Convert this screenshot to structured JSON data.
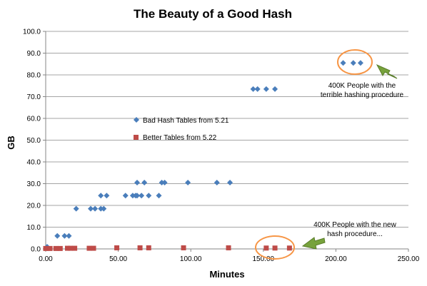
{
  "chart_data": {
    "type": "scatter",
    "title": "The Beauty of a Good Hash",
    "xlabel": "Minutes",
    "ylabel": "GB",
    "xlim": [
      0,
      250
    ],
    "ylim": [
      0,
      100
    ],
    "x_ticks": [
      "0.00",
      "50.00",
      "100.00",
      "150.00",
      "200.00",
      "250.00"
    ],
    "y_ticks": [
      "0.0",
      "10.0",
      "20.0",
      "30.0",
      "40.0",
      "50.0",
      "60.0",
      "70.0",
      "80.0",
      "90.0",
      "100.0"
    ],
    "grid": "horizontal",
    "legend_placement": "center-left",
    "series": [
      {
        "name": "Bad Hash Tables from 5.21",
        "marker": "diamond",
        "color": "#4A7EBB",
        "points": [
          [
            1,
            1.0
          ],
          [
            8,
            6.0
          ],
          [
            13,
            6.0
          ],
          [
            16,
            6.0
          ],
          [
            21,
            18.5
          ],
          [
            31,
            18.5
          ],
          [
            34,
            18.5
          ],
          [
            38,
            18.5
          ],
          [
            40,
            18.5
          ],
          [
            38,
            24.5
          ],
          [
            42,
            24.5
          ],
          [
            55,
            24.5
          ],
          [
            60,
            24.5
          ],
          [
            62,
            24.5
          ],
          [
            63,
            24.5
          ],
          [
            66,
            24.5
          ],
          [
            71,
            24.5
          ],
          [
            78,
            24.5
          ],
          [
            63,
            30.5
          ],
          [
            68,
            30.5
          ],
          [
            80,
            30.5
          ],
          [
            82,
            30.5
          ],
          [
            98,
            30.5
          ],
          [
            118,
            30.5
          ],
          [
            127,
            30.5
          ],
          [
            143,
            73.5
          ],
          [
            146,
            73.5
          ],
          [
            152,
            73.5
          ],
          [
            158,
            73.5
          ],
          [
            205,
            85.5
          ],
          [
            212,
            85.5
          ],
          [
            217,
            85.5
          ]
        ]
      },
      {
        "name": "Better Tables from 5.22",
        "marker": "square",
        "color": "#BE4B48",
        "points": [
          [
            0,
            0.2
          ],
          [
            3,
            0.2
          ],
          [
            7,
            0.2
          ],
          [
            10,
            0.2
          ],
          [
            15,
            0.3
          ],
          [
            17,
            0.3
          ],
          [
            20,
            0.3
          ],
          [
            30,
            0.3
          ],
          [
            33,
            0.3
          ],
          [
            49,
            0.5
          ],
          [
            65,
            0.5
          ],
          [
            71,
            0.5
          ],
          [
            95,
            0.5
          ],
          [
            126,
            0.5
          ],
          [
            152,
            0.4
          ],
          [
            158,
            0.4
          ],
          [
            168,
            0.4
          ]
        ]
      }
    ],
    "annotations": [
      {
        "lines": [
          "400K People with the",
          "terrible hashing procedure"
        ]
      },
      {
        "lines": [
          "400K People with the new",
          "hash procedure..."
        ]
      }
    ]
  }
}
